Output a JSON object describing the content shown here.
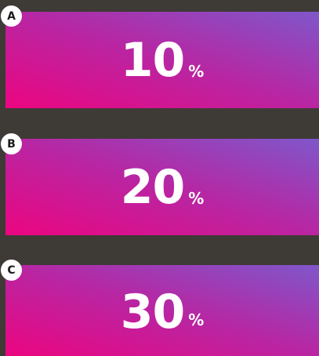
{
  "options": [
    {
      "letter": "A",
      "value": "10",
      "unit": "%"
    },
    {
      "letter": "B",
      "value": "20",
      "unit": "%"
    },
    {
      "letter": "C",
      "value": "30",
      "unit": "%"
    }
  ]
}
